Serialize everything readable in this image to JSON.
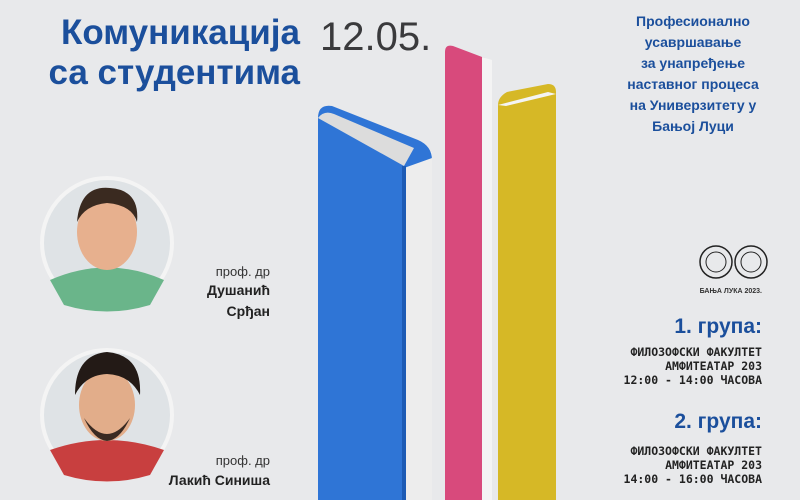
{
  "header": {
    "title_lines": [
      "Комуникација",
      "са студентима"
    ],
    "date": "12.05.",
    "description_lines": [
      "Професионално",
      "усавршавање",
      "за унапређење",
      "наставног процеса",
      "на Универзитету у",
      "Бањој Луци"
    ]
  },
  "speakers": [
    {
      "title": "проф. др",
      "name_lines": [
        "Душанић",
        "Срђан"
      ]
    },
    {
      "title": "проф. др",
      "name_lines": [
        "Лакић Синиша"
      ]
    }
  ],
  "place": "БАЊА ЛУКА 2023.",
  "groups": [
    {
      "label": "1. група:",
      "lines": [
        "ФИЛОЗОФСКИ ФАКУЛТЕТ",
        "АМФИТЕАТАР 203",
        "12:00 - 14:00 ЧАСОВА"
      ]
    },
    {
      "label": "2. група:",
      "lines": [
        "ФИЛОЗОФСКИ ФАКУЛТЕТ",
        "АМФИТЕАТАР 203",
        "14:00 - 16:00 ЧАСОВА"
      ]
    }
  ]
}
